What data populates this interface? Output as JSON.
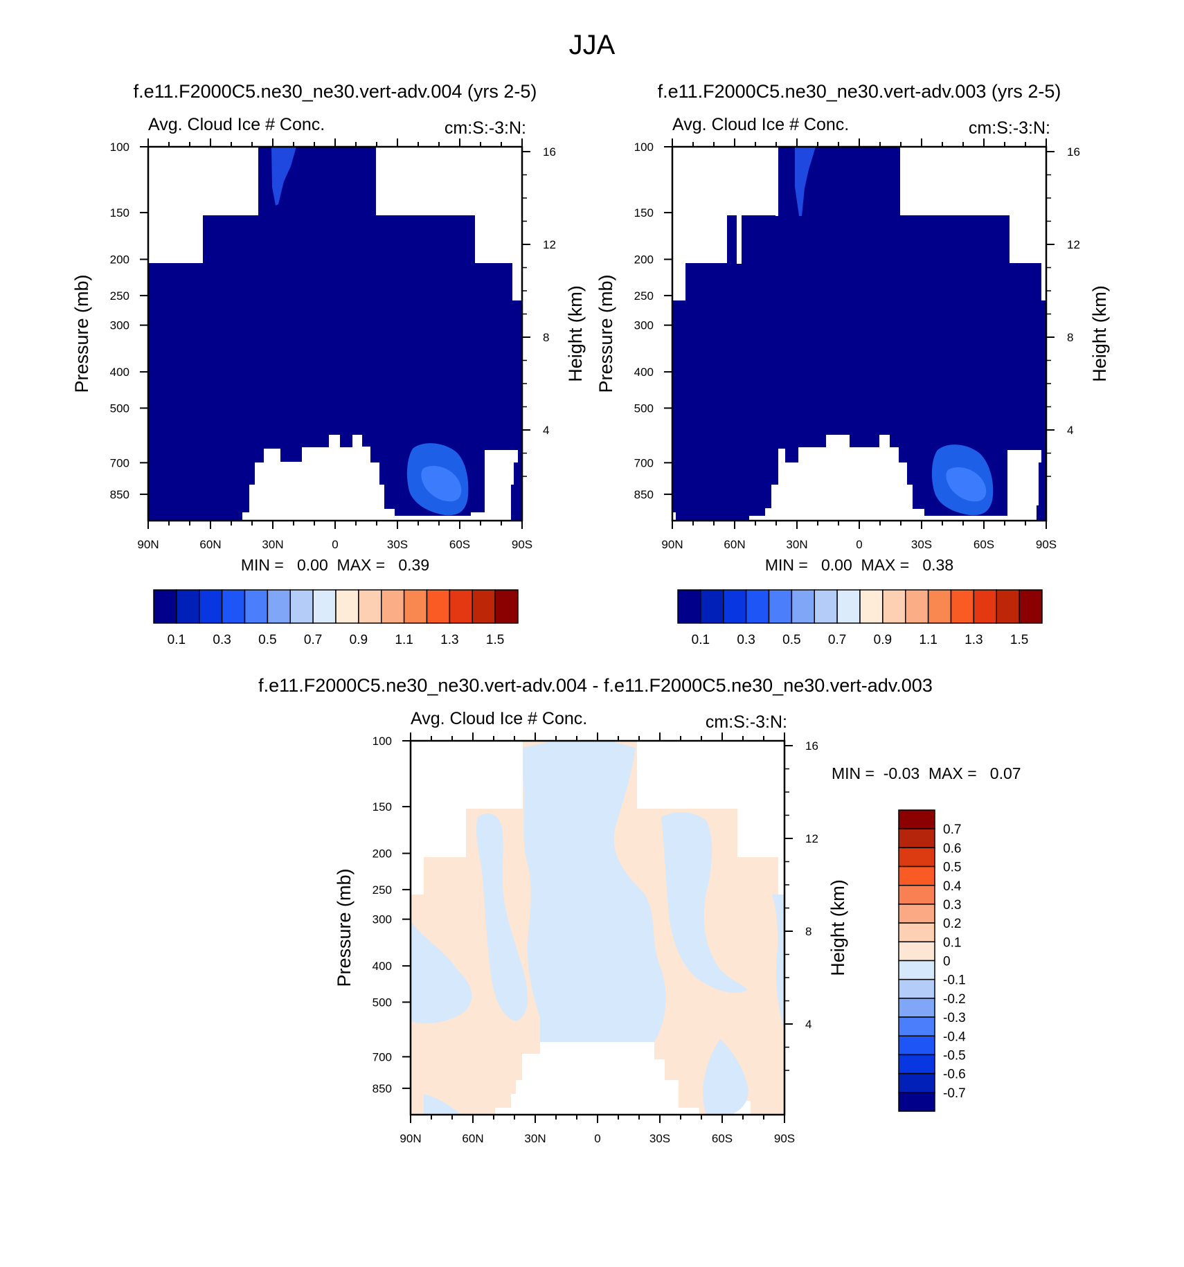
{
  "title": "JJA",
  "colors": {
    "field_fill": "#00008B",
    "positive_fill": "#FDE6D3",
    "negative_fill": "#D6E8FB",
    "hot_spot_1": "#1D5FE6",
    "hot_spot_2": "#3B7BFC",
    "hot_spot_3": "#1E48E0"
  },
  "chart_data": [
    {
      "type": "heatmap",
      "id": "panel_1",
      "title": "f.e11.F2000C5.ne30_ne30.vert-adv.004 (yrs 2-5)",
      "left_string": "Avg. Cloud Ice # Conc.",
      "right_string": "cm:S:-3:N:",
      "xlabel": "",
      "ylabel": "Pressure (mb)",
      "ylabel_right": "Height (km)",
      "x_ticks": [
        "90N",
        "60N",
        "30N",
        "0",
        "30S",
        "60S",
        "90S"
      ],
      "y_ticks": [
        "100",
        "150",
        "200",
        "250",
        "300",
        "400",
        "500",
        "700",
        "850"
      ],
      "y_ticks_right": [
        "16",
        "12",
        "8",
        "4"
      ],
      "min_max": "MIN =   0.00  MAX =   0.39",
      "colorbar": {
        "orientation": "horizontal",
        "colors": [
          "#00008B",
          "#0020B8",
          "#0836E0",
          "#1E55F7",
          "#4A7EFA",
          "#80A6F8",
          "#B3CCF8",
          "#DCEBFB",
          "#FEEBD8",
          "#FDD0B3",
          "#FBAE86",
          "#F98850",
          "#FA5A23",
          "#E43812",
          "#BD2708",
          "#8B0000"
        ],
        "labels": [
          "0.1",
          "0.3",
          "0.5",
          "0.7",
          "0.9",
          "1.1",
          "1.3",
          "1.5"
        ]
      }
    },
    {
      "type": "heatmap",
      "id": "panel_2",
      "title": "f.e11.F2000C5.ne30_ne30.vert-adv.003 (yrs 2-5)",
      "left_string": "Avg. Cloud Ice # Conc.",
      "right_string": "cm:S:-3:N:",
      "xlabel": "",
      "ylabel": "Pressure (mb)",
      "ylabel_right": "Height (km)",
      "x_ticks": [
        "90N",
        "60N",
        "30N",
        "0",
        "30S",
        "60S",
        "90S"
      ],
      "y_ticks": [
        "100",
        "150",
        "200",
        "250",
        "300",
        "400",
        "500",
        "700",
        "850"
      ],
      "y_ticks_right": [
        "16",
        "12",
        "8",
        "4"
      ],
      "min_max": "MIN =   0.00  MAX =   0.38",
      "colorbar": {
        "orientation": "horizontal",
        "colors": [
          "#00008B",
          "#0020B8",
          "#0836E0",
          "#1E55F7",
          "#4A7EFA",
          "#80A6F8",
          "#B3CCF8",
          "#DCEBFB",
          "#FEEBD8",
          "#FDD0B3",
          "#FBAE86",
          "#F98850",
          "#FA5A23",
          "#E43812",
          "#BD2708",
          "#8B0000"
        ],
        "labels": [
          "0.1",
          "0.3",
          "0.5",
          "0.7",
          "0.9",
          "1.1",
          "1.3",
          "1.5"
        ]
      }
    },
    {
      "type": "heatmap",
      "id": "panel_diff",
      "title": "f.e11.F2000C5.ne30_ne30.vert-adv.004 - f.e11.F2000C5.ne30_ne30.vert-adv.003",
      "left_string": "Avg. Cloud Ice # Conc.",
      "right_string": "cm:S:-3:N:",
      "xlabel": "",
      "ylabel": "Pressure (mb)",
      "ylabel_right": "Height (km)",
      "x_ticks": [
        "90N",
        "60N",
        "30N",
        "0",
        "30S",
        "60S",
        "90S"
      ],
      "y_ticks": [
        "100",
        "150",
        "200",
        "250",
        "300",
        "400",
        "500",
        "700",
        "850"
      ],
      "y_ticks_right": [
        "16",
        "12",
        "8",
        "4"
      ],
      "min_max": "MIN =  -0.03  MAX =   0.07",
      "colorbar": {
        "orientation": "vertical",
        "colors": [
          "#8B0000",
          "#B5250B",
          "#DC3A10",
          "#FA5A23",
          "#F98052",
          "#FBA884",
          "#FDD0B3",
          "#FDE6D3",
          "#D6E8FB",
          "#B3CCF8",
          "#80A6F8",
          "#4A7EFA",
          "#1E55F7",
          "#0836E0",
          "#0020B8",
          "#00008B"
        ],
        "labels": [
          "0.7",
          "0.6",
          "0.5",
          "0.4",
          "0.3",
          "0.2",
          "0.1",
          "0",
          "-0.1",
          "-0.2",
          "-0.3",
          "-0.4",
          "-0.5",
          "-0.6",
          "-0.7"
        ]
      }
    }
  ]
}
